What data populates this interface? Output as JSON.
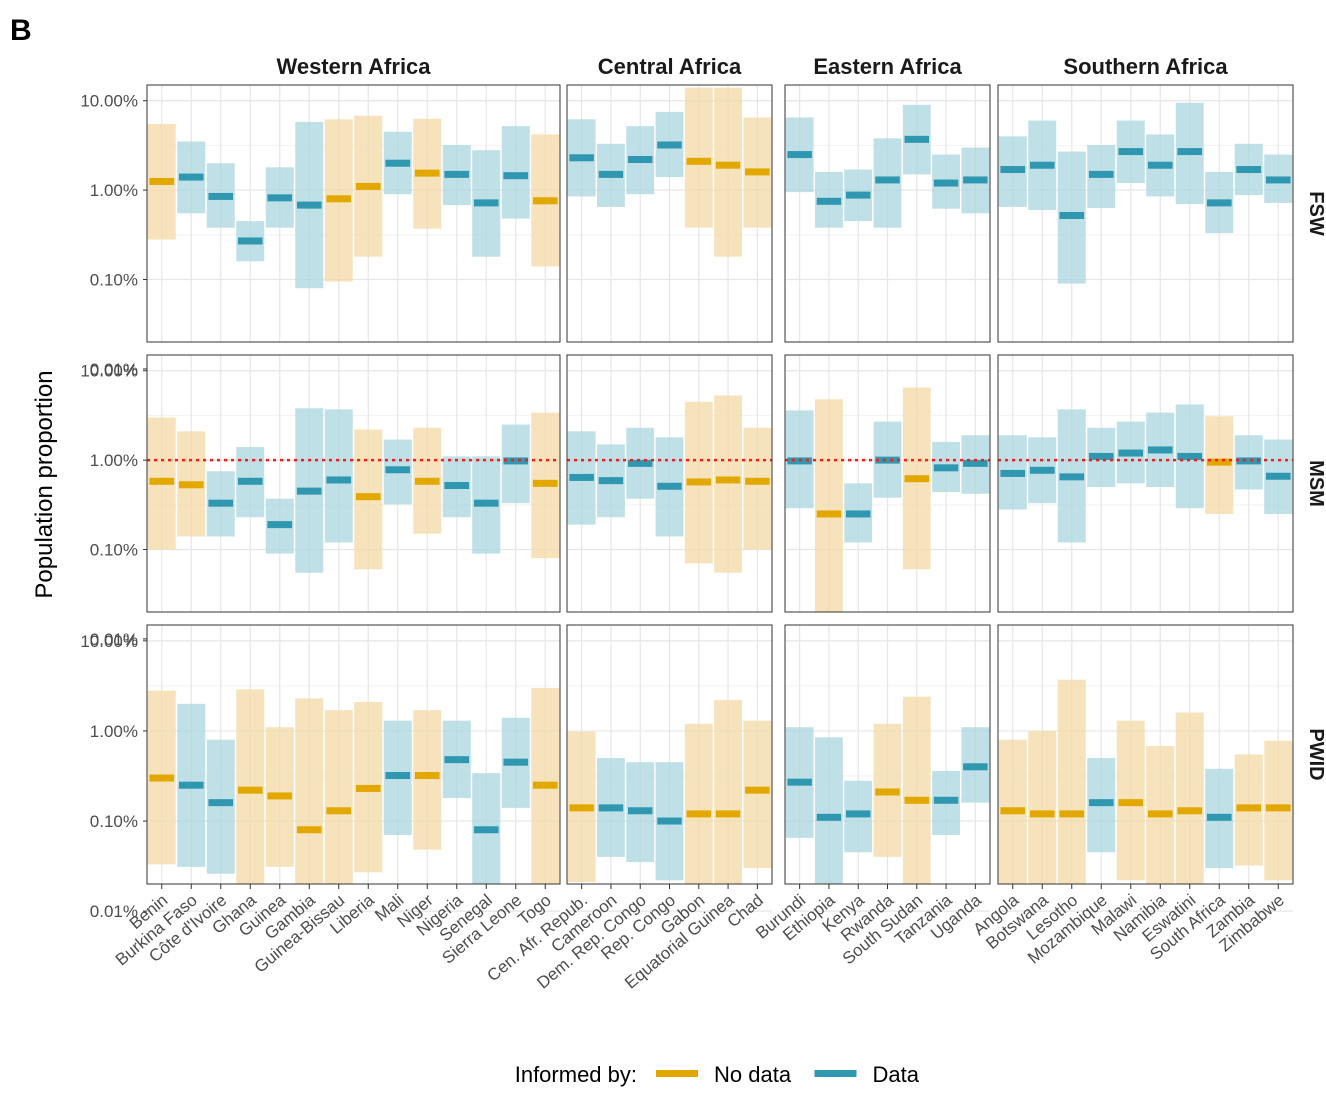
{
  "figure": {
    "panel_letter": "B"
  },
  "chart_data": {
    "type": "faceted-range",
    "y_axis": {
      "label": "Population proportion",
      "scale": "log10",
      "ylim": [
        0.0002,
        0.15
      ],
      "ticks": [
        {
          "value": 0.0001,
          "label": "0.01%"
        },
        {
          "value": 0.001,
          "label": "0.10%"
        },
        {
          "value": 0.01,
          "label": "1.00%"
        },
        {
          "value": 0.1,
          "label": "10.00%"
        }
      ]
    },
    "legend": {
      "title": "Informed by:",
      "position": "bottom",
      "items": [
        {
          "key": "nodata",
          "label": "No data",
          "color": "#e2a800",
          "band_color": "#f3d9a6"
        },
        {
          "key": "data",
          "label": "Data",
          "color": "#2f97b0",
          "band_color": "#a9d5df"
        }
      ]
    },
    "reference_line": {
      "facet_row": "MSM",
      "value": 0.01,
      "color": "#ff1a1a",
      "style": "dotted"
    },
    "facet_rows": [
      "FSW",
      "MSM",
      "PWID"
    ],
    "regions": [
      {
        "name": "Western Africa",
        "countries": [
          "Benin",
          "Burkina Faso",
          "Côte d'Ivoire",
          "Ghana",
          "Guinea",
          "Gambia",
          "Guinea-Bissau",
          "Liberia",
          "Mali",
          "Niger",
          "Nigeria",
          "Senegal",
          "Sierra Leone",
          "Togo"
        ],
        "FSW": [
          {
            "est": 0.0125,
            "lo": 0.0028,
            "hi": 0.055,
            "src": "nodata"
          },
          {
            "est": 0.014,
            "lo": 0.0055,
            "hi": 0.035,
            "src": "data"
          },
          {
            "est": 0.0085,
            "lo": 0.0038,
            "hi": 0.02,
            "src": "data"
          },
          {
            "est": 0.0027,
            "lo": 0.0016,
            "hi": 0.0045,
            "src": "data"
          },
          {
            "est": 0.0082,
            "lo": 0.0038,
            "hi": 0.018,
            "src": "data"
          },
          {
            "est": 0.0068,
            "lo": 0.0008,
            "hi": 0.058,
            "src": "data"
          },
          {
            "est": 0.008,
            "lo": 0.00095,
            "hi": 0.062,
            "src": "nodata"
          },
          {
            "est": 0.011,
            "lo": 0.0018,
            "hi": 0.068,
            "src": "nodata"
          },
          {
            "est": 0.02,
            "lo": 0.009,
            "hi": 0.045,
            "src": "data"
          },
          {
            "est": 0.0155,
            "lo": 0.0037,
            "hi": 0.063,
            "src": "nodata"
          },
          {
            "est": 0.015,
            "lo": 0.0068,
            "hi": 0.032,
            "src": "data"
          },
          {
            "est": 0.0072,
            "lo": 0.0018,
            "hi": 0.028,
            "src": "data"
          },
          {
            "est": 0.0145,
            "lo": 0.0048,
            "hi": 0.052,
            "src": "data"
          },
          {
            "est": 0.0076,
            "lo": 0.0014,
            "hi": 0.042,
            "src": "nodata"
          }
        ],
        "MSM": [
          {
            "est": 0.0058,
            "lo": 0.001,
            "hi": 0.03,
            "src": "nodata"
          },
          {
            "est": 0.0053,
            "lo": 0.0014,
            "hi": 0.021,
            "src": "nodata"
          },
          {
            "est": 0.0033,
            "lo": 0.0014,
            "hi": 0.0075,
            "src": "data"
          },
          {
            "est": 0.0058,
            "lo": 0.0023,
            "hi": 0.014,
            "src": "data"
          },
          {
            "est": 0.0019,
            "lo": 0.0009,
            "hi": 0.0037,
            "src": "data"
          },
          {
            "est": 0.0045,
            "lo": 0.00055,
            "hi": 0.038,
            "src": "data"
          },
          {
            "est": 0.006,
            "lo": 0.0012,
            "hi": 0.037,
            "src": "data"
          },
          {
            "est": 0.0039,
            "lo": 0.0006,
            "hi": 0.022,
            "src": "nodata"
          },
          {
            "est": 0.0078,
            "lo": 0.0032,
            "hi": 0.017,
            "src": "data"
          },
          {
            "est": 0.0058,
            "lo": 0.0015,
            "hi": 0.023,
            "src": "nodata"
          },
          {
            "est": 0.0052,
            "lo": 0.0023,
            "hi": 0.011,
            "src": "data"
          },
          {
            "est": 0.0033,
            "lo": 0.0009,
            "hi": 0.011,
            "src": "data"
          },
          {
            "est": 0.0098,
            "lo": 0.0033,
            "hi": 0.025,
            "src": "data"
          },
          {
            "est": 0.0055,
            "lo": 0.0008,
            "hi": 0.034,
            "src": "nodata"
          }
        ],
        "PWID": [
          {
            "est": 0.003,
            "lo": 0.00033,
            "hi": 0.028,
            "src": "nodata"
          },
          {
            "est": 0.0025,
            "lo": 0.00031,
            "hi": 0.02,
            "src": "data"
          },
          {
            "est": 0.0016,
            "lo": 0.00026,
            "hi": 0.008,
            "src": "data"
          },
          {
            "est": 0.0022,
            "lo": 0.00016,
            "hi": 0.029,
            "src": "nodata"
          },
          {
            "est": 0.0019,
            "lo": 0.00031,
            "hi": 0.011,
            "src": "nodata"
          },
          {
            "est": 0.0008,
            "lo": 0.0002,
            "hi": 0.023,
            "src": "nodata"
          },
          {
            "est": 0.0013,
            "lo": 9e-05,
            "hi": 0.017,
            "src": "nodata"
          },
          {
            "est": 0.0023,
            "lo": 0.00027,
            "hi": 0.021,
            "src": "nodata"
          },
          {
            "est": 0.0032,
            "lo": 0.0007,
            "hi": 0.013,
            "src": "data"
          },
          {
            "est": 0.0032,
            "lo": 0.00048,
            "hi": 0.017,
            "src": "nodata"
          },
          {
            "est": 0.0048,
            "lo": 0.0018,
            "hi": 0.013,
            "src": "data"
          },
          {
            "est": 0.0008,
            "lo": 0.00018,
            "hi": 0.0034,
            "src": "data"
          },
          {
            "est": 0.0045,
            "lo": 0.0014,
            "hi": 0.014,
            "src": "data"
          },
          {
            "est": 0.0025,
            "lo": 0.00018,
            "hi": 0.03,
            "src": "nodata"
          }
        ]
      },
      {
        "name": "Central Africa",
        "countries": [
          "Cen. Afr. Repub.",
          "Cameroon",
          "Dem. Rep. Congo",
          "Rep. Congo",
          "Gabon",
          "Equatorial Guinea",
          "Chad"
        ],
        "FSW": [
          {
            "est": 0.023,
            "lo": 0.0085,
            "hi": 0.062,
            "src": "data"
          },
          {
            "est": 0.015,
            "lo": 0.0065,
            "hi": 0.033,
            "src": "data"
          },
          {
            "est": 0.022,
            "lo": 0.009,
            "hi": 0.052,
            "src": "data"
          },
          {
            "est": 0.032,
            "lo": 0.014,
            "hi": 0.075,
            "src": "data"
          },
          {
            "est": 0.021,
            "lo": 0.0038,
            "hi": 0.14,
            "src": "nodata"
          },
          {
            "est": 0.019,
            "lo": 0.0018,
            "hi": 0.14,
            "src": "nodata"
          },
          {
            "est": 0.016,
            "lo": 0.0038,
            "hi": 0.065,
            "src": "nodata"
          }
        ],
        "MSM": [
          {
            "est": 0.0064,
            "lo": 0.0019,
            "hi": 0.021,
            "src": "data"
          },
          {
            "est": 0.0059,
            "lo": 0.0023,
            "hi": 0.015,
            "src": "data"
          },
          {
            "est": 0.0092,
            "lo": 0.0037,
            "hi": 0.023,
            "src": "data"
          },
          {
            "est": 0.0051,
            "lo": 0.0014,
            "hi": 0.018,
            "src": "data"
          },
          {
            "est": 0.0057,
            "lo": 0.0007,
            "hi": 0.045,
            "src": "nodata"
          },
          {
            "est": 0.006,
            "lo": 0.00055,
            "hi": 0.053,
            "src": "nodata"
          },
          {
            "est": 0.0058,
            "lo": 0.001,
            "hi": 0.023,
            "src": "nodata"
          }
        ],
        "PWID": [
          {
            "est": 0.0014,
            "lo": 0.00021,
            "hi": 0.0098,
            "src": "nodata"
          },
          {
            "est": 0.0014,
            "lo": 0.0004,
            "hi": 0.005,
            "src": "data"
          },
          {
            "est": 0.0013,
            "lo": 0.00035,
            "hi": 0.0045,
            "src": "data"
          },
          {
            "est": 0.001,
            "lo": 0.00022,
            "hi": 0.0045,
            "src": "data"
          },
          {
            "est": 0.0012,
            "lo": 0.00012,
            "hi": 0.012,
            "src": "nodata"
          },
          {
            "est": 0.0012,
            "lo": 8e-05,
            "hi": 0.022,
            "src": "nodata"
          },
          {
            "est": 0.0022,
            "lo": 0.0003,
            "hi": 0.013,
            "src": "nodata"
          }
        ]
      },
      {
        "name": "Eastern Africa",
        "countries": [
          "Burundi",
          "Ethiopia",
          "Kenya",
          "Rwanda",
          "South Sudan",
          "Tanzania",
          "Uganda"
        ],
        "FSW": [
          {
            "est": 0.025,
            "lo": 0.0095,
            "hi": 0.065,
            "src": "data"
          },
          {
            "est": 0.0075,
            "lo": 0.0038,
            "hi": 0.016,
            "src": "data"
          },
          {
            "est": 0.0088,
            "lo": 0.0045,
            "hi": 0.017,
            "src": "data"
          },
          {
            "est": 0.013,
            "lo": 0.0038,
            "hi": 0.038,
            "src": "data"
          },
          {
            "est": 0.037,
            "lo": 0.015,
            "hi": 0.09,
            "src": "data"
          },
          {
            "est": 0.012,
            "lo": 0.0062,
            "hi": 0.025,
            "src": "data"
          },
          {
            "est": 0.013,
            "lo": 0.0055,
            "hi": 0.03,
            "src": "data"
          }
        ],
        "MSM": [
          {
            "est": 0.0098,
            "lo": 0.0029,
            "hi": 0.036,
            "src": "data"
          },
          {
            "est": 0.0025,
            "lo": 0.00012,
            "hi": 0.048,
            "src": "nodata"
          },
          {
            "est": 0.0025,
            "lo": 0.0012,
            "hi": 0.0055,
            "src": "data"
          },
          {
            "est": 0.01,
            "lo": 0.0038,
            "hi": 0.027,
            "src": "data"
          },
          {
            "est": 0.0062,
            "lo": 0.0006,
            "hi": 0.065,
            "src": "nodata"
          },
          {
            "est": 0.0082,
            "lo": 0.0044,
            "hi": 0.016,
            "src": "data"
          },
          {
            "est": 0.0092,
            "lo": 0.0042,
            "hi": 0.019,
            "src": "data"
          }
        ],
        "PWID": [
          {
            "est": 0.0027,
            "lo": 0.00065,
            "hi": 0.011,
            "src": "data"
          },
          {
            "est": 0.0011,
            "lo": 0.0001,
            "hi": 0.0085,
            "src": "data"
          },
          {
            "est": 0.0012,
            "lo": 0.00045,
            "hi": 0.0028,
            "src": "data"
          },
          {
            "est": 0.0021,
            "lo": 0.0004,
            "hi": 0.012,
            "src": "nodata"
          },
          {
            "est": 0.0017,
            "lo": 0.0001,
            "hi": 0.024,
            "src": "nodata"
          },
          {
            "est": 0.0017,
            "lo": 0.0007,
            "hi": 0.0036,
            "src": "data"
          },
          {
            "est": 0.004,
            "lo": 0.0016,
            "hi": 0.011,
            "src": "data"
          }
        ]
      },
      {
        "name": "Southern Africa",
        "countries": [
          "Angola",
          "Botswana",
          "Lesotho",
          "Mozambique",
          "Malawi",
          "Namibia",
          "Eswatini",
          "South Africa",
          "Zambia",
          "Zimbabwe"
        ],
        "FSW": [
          {
            "est": 0.017,
            "lo": 0.0065,
            "hi": 0.04,
            "src": "data"
          },
          {
            "est": 0.019,
            "lo": 0.006,
            "hi": 0.06,
            "src": "data"
          },
          {
            "est": 0.0052,
            "lo": 0.0009,
            "hi": 0.027,
            "src": "data"
          },
          {
            "est": 0.015,
            "lo": 0.0063,
            "hi": 0.032,
            "src": "data"
          },
          {
            "est": 0.027,
            "lo": 0.012,
            "hi": 0.06,
            "src": "data"
          },
          {
            "est": 0.019,
            "lo": 0.0085,
            "hi": 0.042,
            "src": "data"
          },
          {
            "est": 0.027,
            "lo": 0.007,
            "hi": 0.095,
            "src": "data"
          },
          {
            "est": 0.0072,
            "lo": 0.0033,
            "hi": 0.016,
            "src": "data"
          },
          {
            "est": 0.017,
            "lo": 0.0088,
            "hi": 0.033,
            "src": "data"
          },
          {
            "est": 0.013,
            "lo": 0.0072,
            "hi": 0.025,
            "src": "data"
          }
        ],
        "MSM": [
          {
            "est": 0.0071,
            "lo": 0.0028,
            "hi": 0.019,
            "src": "data"
          },
          {
            "est": 0.0077,
            "lo": 0.0033,
            "hi": 0.018,
            "src": "data"
          },
          {
            "est": 0.0065,
            "lo": 0.0012,
            "hi": 0.037,
            "src": "data"
          },
          {
            "est": 0.011,
            "lo": 0.005,
            "hi": 0.023,
            "src": "data"
          },
          {
            "est": 0.012,
            "lo": 0.0055,
            "hi": 0.027,
            "src": "data"
          },
          {
            "est": 0.013,
            "lo": 0.005,
            "hi": 0.034,
            "src": "data"
          },
          {
            "est": 0.011,
            "lo": 0.0029,
            "hi": 0.042,
            "src": "data"
          },
          {
            "est": 0.0095,
            "lo": 0.0025,
            "hi": 0.031,
            "src": "nodata"
          },
          {
            "est": 0.0098,
            "lo": 0.0047,
            "hi": 0.019,
            "src": "data"
          },
          {
            "est": 0.0066,
            "lo": 0.0025,
            "hi": 0.017,
            "src": "data"
          }
        ],
        "PWID": [
          {
            "est": 0.0013,
            "lo": 0.00019,
            "hi": 0.008,
            "src": "nodata"
          },
          {
            "est": 0.0012,
            "lo": 0.00017,
            "hi": 0.01,
            "src": "nodata"
          },
          {
            "est": 0.0012,
            "lo": 3e-05,
            "hi": 0.037,
            "src": "nodata"
          },
          {
            "est": 0.0016,
            "lo": 0.00045,
            "hi": 0.005,
            "src": "data"
          },
          {
            "est": 0.0016,
            "lo": 0.00022,
            "hi": 0.013,
            "src": "nodata"
          },
          {
            "est": 0.0012,
            "lo": 0.00019,
            "hi": 0.0068,
            "src": "nodata"
          },
          {
            "est": 0.0013,
            "lo": 9e-05,
            "hi": 0.016,
            "src": "nodata"
          },
          {
            "est": 0.0011,
            "lo": 0.0003,
            "hi": 0.0038,
            "src": "data"
          },
          {
            "est": 0.0014,
            "lo": 0.00032,
            "hi": 0.0055,
            "src": "nodata"
          },
          {
            "est": 0.0014,
            "lo": 0.00022,
            "hi": 0.0078,
            "src": "nodata"
          }
        ]
      }
    ]
  }
}
